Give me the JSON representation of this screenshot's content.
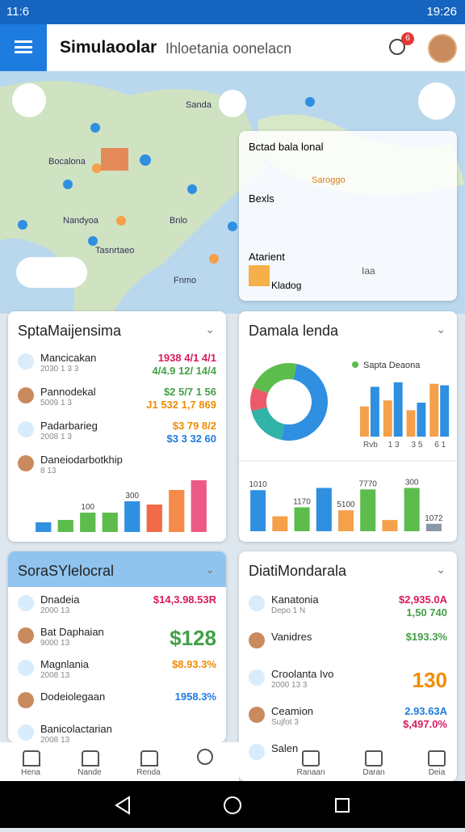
{
  "status_bar": {
    "left": "11:6",
    "time": "19:26"
  },
  "header": {
    "title": "Simulaoolar",
    "subtitle": "Ihloetania oonelacn",
    "badge": "6"
  },
  "map": {
    "labels": [
      "Sanda",
      "Bocalona",
      "Nandyoa",
      "Bnlo",
      "Tasnrtaeo",
      "Fnmo"
    ],
    "panel": {
      "title": "Bctad bala lonal",
      "tag": "Saroggo",
      "items": [
        "Bexls",
        "Atarient",
        "Kladog"
      ],
      "badge": "Iaa"
    }
  },
  "cards": [
    {
      "title": "SptaMaijensima",
      "rows": [
        {
          "label": "Mancicakan",
          "sub": "2030 1 3 3",
          "value": "1938 4/1 4/1",
          "value2": "4/4.9 12/ 14/4"
        },
        {
          "label": "Pannodekal",
          "sub": "5009 1 3",
          "value": "$2 5/7 1 56",
          "value2": "J1 532 1,7 869"
        },
        {
          "label": "Padarbarieg",
          "sub": "2008 1 3",
          "value": "$3 79 8/2",
          "value2": "$3 3 32 60"
        },
        {
          "label": "Daneiodarbotkhip",
          "sub": "8 13"
        }
      ],
      "chart": {
        "type": "bar",
        "categories": [
          null,
          null,
          "100",
          null,
          "300",
          null,
          null,
          null
        ],
        "values": [
          12,
          15,
          24,
          24,
          38,
          34,
          52,
          64
        ],
        "colors": [
          "#2f8fe0",
          "#5cbc4c",
          "#5cbc4c",
          "#5cbc4c",
          "#2f8fe0",
          "#f26a4a",
          "#f58a4a",
          "#ec5a86"
        ],
        "ylim": [
          0,
          70
        ]
      }
    },
    {
      "title": "Damala lenda",
      "legend": "Sapta Deaona",
      "donut": {
        "type": "pie",
        "values": [
          50,
          18,
          10,
          22
        ],
        "colors": [
          "#2f8fe0",
          "#31b3a8",
          "#ec5a6a",
          "#5cbc4c"
        ]
      },
      "chart": {
        "type": "bar",
        "categories": [
          "Rvb",
          "1 3",
          "3 5",
          "6 1"
        ],
        "series": [
          {
            "color": "#f5a04a",
            "values": [
              40,
              48,
              35,
              70
            ]
          },
          {
            "color": "#2f8fe0",
            "values": [
              66,
              72,
              45,
              68
            ]
          }
        ],
        "ylim": [
          0,
          75
        ]
      },
      "chart2": {
        "type": "bar",
        "categories": [
          "1010",
          null,
          "1170",
          null,
          "5100",
          "7770",
          null,
          "300",
          "1072"
        ],
        "values": [
          55,
          20,
          32,
          58,
          28,
          56,
          15,
          58,
          10
        ],
        "colors": [
          "#2f8fe0",
          "#f5a04a",
          "#5cbc4c",
          "#2f8fe0",
          "#f5a04a",
          "#5cbc4c",
          "#f5a04a",
          "#5cbc4c",
          "#8a95a5"
        ],
        "ylim": [
          0,
          65
        ]
      }
    },
    {
      "title": "SoraSYlelocral",
      "rows": [
        {
          "label": "Dnadeia",
          "sub": "2000 13",
          "value": "$14,3.98.53R"
        },
        {
          "label": "Bat Daphaian",
          "sub": "9000 13",
          "value": "$128"
        },
        {
          "label": "Magnlania",
          "sub": "2008 13",
          "value": "$8.93.3%"
        },
        {
          "label": "Dodeiolegaan",
          "sub": "",
          "value": "1958.3%"
        },
        {
          "label": "Banicolactarian",
          "sub": "2008 13"
        }
      ]
    },
    {
      "title": "DiatiMondarala",
      "rows": [
        {
          "label": "Kanatonia",
          "sub": "Depo 1 N",
          "value": "$2,935.0A",
          "value2": "1,50 740"
        },
        {
          "label": "Vanidres",
          "value": "$193.3%"
        },
        {
          "label": "Croolanta Ivo",
          "sub": "2000 13 3",
          "value": "130"
        },
        {
          "label": "Ceamion",
          "sub": "Sujfot 3",
          "value": "2.93.63A",
          "value2": "$,497.0%"
        },
        {
          "label": "Salen"
        }
      ]
    }
  ],
  "nav": [
    "Hena",
    "Nande",
    "Renda",
    "Ranaan",
    "Daran",
    "Deia"
  ]
}
